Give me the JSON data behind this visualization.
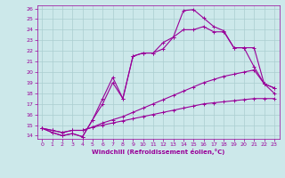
{
  "xlabel": "Windchill (Refroidissement éolien,°C)",
  "bg_color": "#cce8ea",
  "line_color": "#990099",
  "grid_color": "#aacdd0",
  "xlim": [
    -0.5,
    23.5
  ],
  "ylim": [
    13.7,
    26.3
  ],
  "yticks": [
    14,
    15,
    16,
    17,
    18,
    19,
    20,
    21,
    22,
    23,
    24,
    25,
    26
  ],
  "xticks": [
    0,
    1,
    2,
    3,
    4,
    5,
    6,
    7,
    8,
    9,
    10,
    11,
    12,
    13,
    14,
    15,
    16,
    17,
    18,
    19,
    20,
    21,
    22,
    23
  ],
  "lines": [
    {
      "x": [
        0,
        1,
        2,
        3,
        4,
        5,
        6,
        7,
        8,
        9,
        10,
        11,
        12,
        13,
        14,
        15,
        16,
        17,
        18,
        19,
        20,
        21,
        22,
        23
      ],
      "y": [
        14.7,
        14.3,
        14.0,
        14.2,
        13.9,
        15.5,
        17.5,
        19.5,
        17.5,
        21.5,
        21.8,
        21.8,
        22.8,
        23.3,
        25.8,
        25.9,
        25.1,
        24.3,
        23.9,
        22.3,
        22.3,
        22.3,
        18.9,
        18.0
      ]
    },
    {
      "x": [
        0,
        1,
        2,
        3,
        4,
        5,
        6,
        7,
        8,
        9,
        10,
        11,
        12,
        13,
        14,
        15,
        16,
        17,
        18,
        19,
        20,
        21,
        22,
        23
      ],
      "y": [
        14.7,
        14.3,
        14.0,
        14.2,
        13.9,
        15.5,
        17.0,
        19.0,
        17.5,
        21.5,
        21.8,
        21.8,
        22.2,
        23.3,
        24.0,
        24.0,
        24.3,
        23.8,
        23.8,
        22.3,
        22.3,
        20.5,
        18.9,
        18.5
      ]
    },
    {
      "x": [
        0,
        1,
        2,
        3,
        4,
        5,
        6,
        7,
        8,
        9,
        10,
        11,
        12,
        13,
        14,
        15,
        16,
        17,
        18,
        19,
        20,
        21,
        22,
        23
      ],
      "y": [
        14.7,
        14.5,
        14.3,
        14.5,
        14.5,
        14.8,
        15.2,
        15.5,
        15.8,
        16.2,
        16.6,
        17.0,
        17.4,
        17.8,
        18.2,
        18.6,
        19.0,
        19.3,
        19.6,
        19.8,
        20.0,
        20.2,
        18.9,
        18.5
      ]
    },
    {
      "x": [
        0,
        1,
        2,
        3,
        4,
        5,
        6,
        7,
        8,
        9,
        10,
        11,
        12,
        13,
        14,
        15,
        16,
        17,
        18,
        19,
        20,
        21,
        22,
        23
      ],
      "y": [
        14.7,
        14.5,
        14.3,
        14.5,
        14.5,
        14.8,
        15.0,
        15.2,
        15.4,
        15.6,
        15.8,
        16.0,
        16.2,
        16.4,
        16.6,
        16.8,
        17.0,
        17.1,
        17.2,
        17.3,
        17.4,
        17.5,
        17.5,
        17.5
      ]
    }
  ]
}
